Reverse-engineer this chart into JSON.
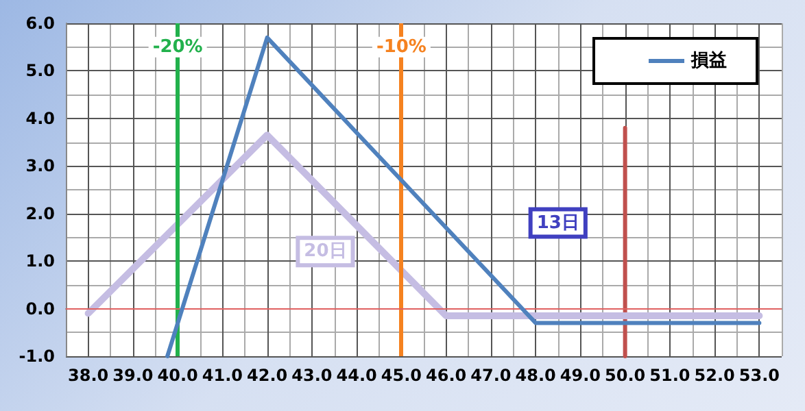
{
  "chart_data": {
    "type": "line",
    "xlim": [
      37.5,
      53.5
    ],
    "ylim": [
      -1,
      6
    ],
    "xticks": [
      {
        "value": 38,
        "label": "38.0"
      },
      {
        "value": 39,
        "label": "39.0"
      },
      {
        "value": 40,
        "label": "40.0"
      },
      {
        "value": 41,
        "label": "41.0"
      },
      {
        "value": 42,
        "label": "42.0"
      },
      {
        "value": 43,
        "label": "43.0"
      },
      {
        "value": 44,
        "label": "44.0"
      },
      {
        "value": 45,
        "label": "45.0"
      },
      {
        "value": 46,
        "label": "46.0"
      },
      {
        "value": 47,
        "label": "47.0"
      },
      {
        "value": 48,
        "label": "48.0"
      },
      {
        "value": 49,
        "label": "49.0"
      },
      {
        "value": 50,
        "label": "50.0"
      },
      {
        "value": 51,
        "label": "51.0"
      },
      {
        "value": 52,
        "label": "52.0"
      },
      {
        "value": 53,
        "label": "53.0"
      }
    ],
    "yticks": [
      {
        "value": -1,
        "label": "-1.0"
      },
      {
        "value": 0,
        "label": "0.0"
      },
      {
        "value": 1,
        "label": "1.0"
      },
      {
        "value": 2,
        "label": "2.0"
      },
      {
        "value": 3,
        "label": "3.0"
      },
      {
        "value": 4,
        "label": "4.0"
      },
      {
        "value": 5,
        "label": "5.0"
      },
      {
        "value": 6,
        "label": "6.0"
      }
    ],
    "series": [
      {
        "name": "損益",
        "color": "#4f81bd",
        "x": [
          39.77,
          42,
          48,
          53
        ],
        "values": [
          -1,
          5.7,
          -0.3,
          -0.3
        ]
      },
      {
        "color": "#c5bde3",
        "x": [
          38,
          42,
          46,
          53
        ],
        "values": [
          -0.1,
          3.65,
          -0.15,
          -0.15
        ]
      },
      {
        "color": "#c0504d",
        "x": [
          50,
          50
        ],
        "values": [
          -1,
          3.8
        ]
      }
    ],
    "ref_lines": [
      {
        "axis": "x",
        "value": 40,
        "color": "#22b14c"
      },
      {
        "axis": "x",
        "value": 45,
        "color": "#f58220"
      },
      {
        "axis": "y",
        "value": 0,
        "color": "#e06060"
      }
    ],
    "annotations": [
      {
        "text": "-20%",
        "x": 40,
        "y": 5.5
      },
      {
        "text": "-10%",
        "x": 45,
        "y": 5.5
      },
      {
        "text": "13日",
        "x": 48.5,
        "y": 1.8
      },
      {
        "text": "20日",
        "x": 43.3,
        "y": 1.2
      }
    ],
    "grid": true,
    "legend": "top right",
    "marker": "none",
    "line_style": "solid"
  }
}
